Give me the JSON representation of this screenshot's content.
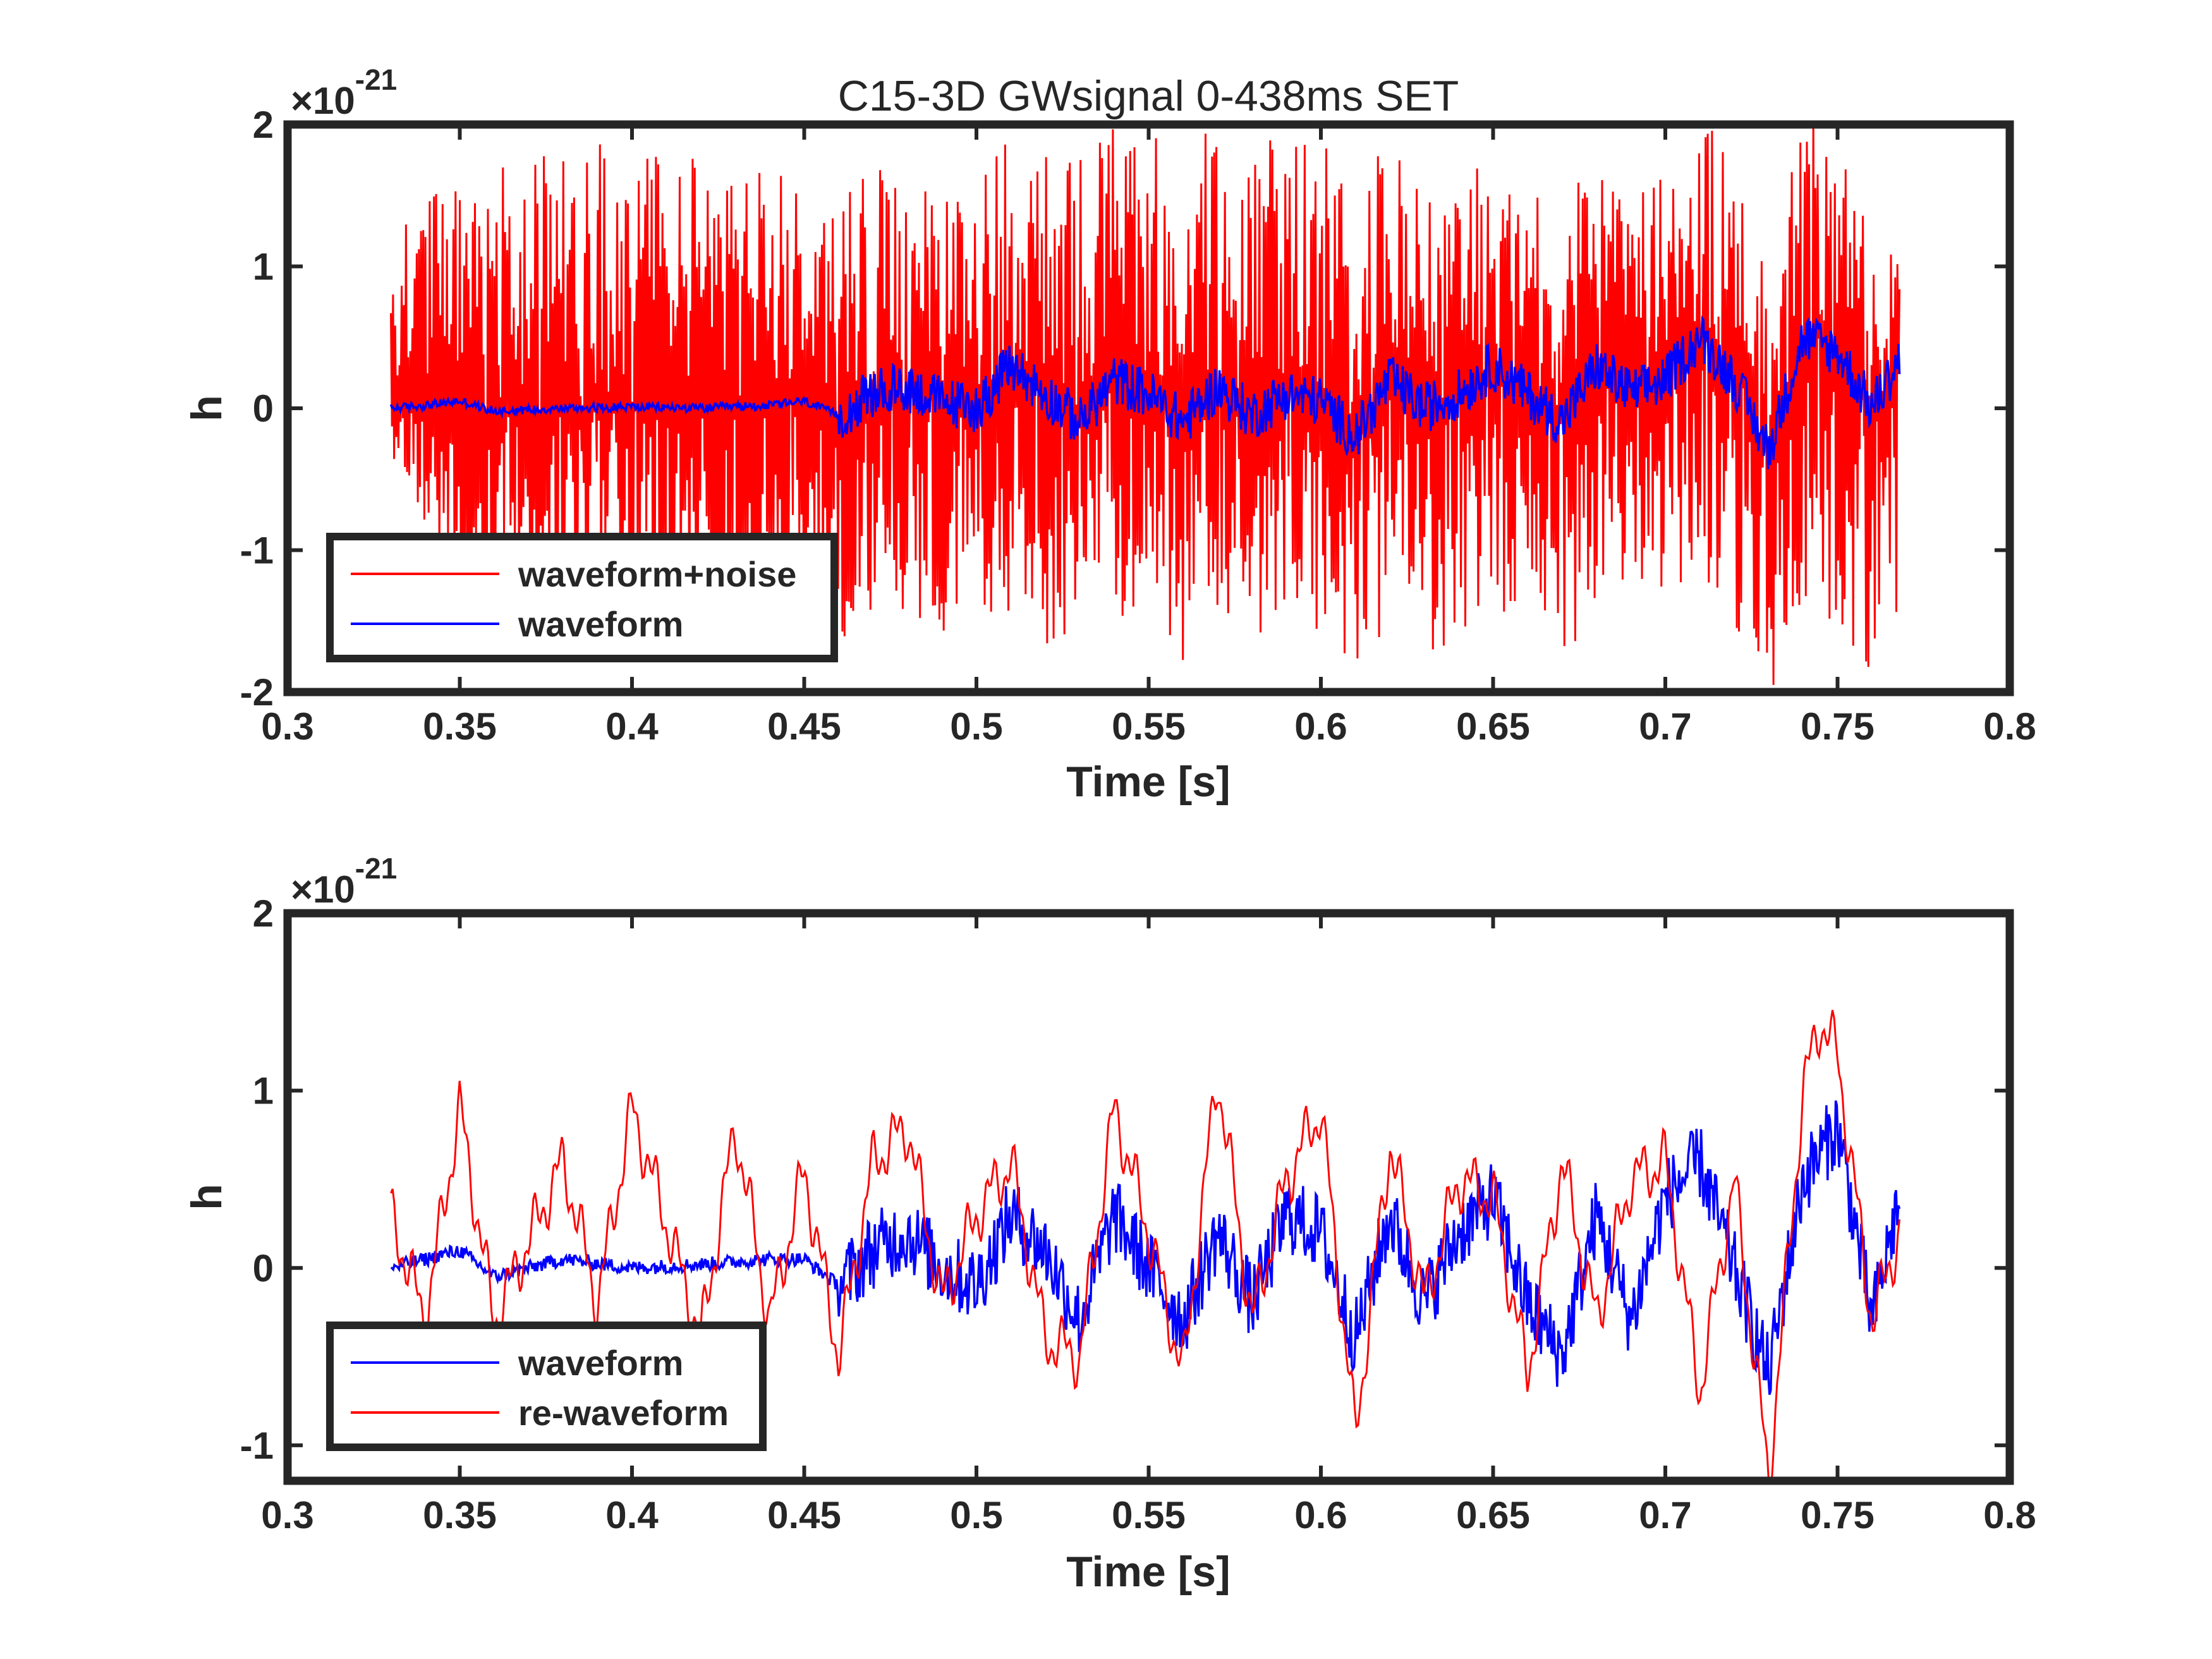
{
  "chart_data": [
    {
      "type": "line",
      "title": "C15-3D GWsignal 0-438ms SET",
      "xlabel": "Time [s]",
      "ylabel": "h",
      "exponent_base": "×10",
      "exponent_power": "-21",
      "xlim": [
        0.3,
        0.8
      ],
      "ylim": [
        -2,
        2
      ],
      "xticks": [
        0.3,
        0.35,
        0.4,
        0.45,
        0.5,
        0.55,
        0.6,
        0.65,
        0.7,
        0.75,
        0.8
      ],
      "xtick_labels": [
        "0.3",
        "0.35",
        "0.4",
        "0.45",
        "0.5",
        "0.55",
        "0.6",
        "0.65",
        "0.7",
        "0.75",
        "0.8"
      ],
      "yticks": [
        -2,
        -1,
        0,
        1,
        2
      ],
      "ytick_labels": [
        "-2",
        "-1",
        "0",
        "1",
        "2"
      ],
      "legend_position": "bottom-left",
      "time_range": [
        0.33,
        0.768
      ],
      "series": [
        {
          "name": "waveform+noise",
          "color": "#ff0000",
          "description": "dense broadband noise, amplitude about ±1.9e-21 over 0.33–0.768 s",
          "x": [
            0.33,
            0.35,
            0.4,
            0.45,
            0.5,
            0.55,
            0.6,
            0.65,
            0.7,
            0.75,
            0.768
          ],
          "envelope_max": [
            1.2,
            1.7,
            1.9,
            1.6,
            1.5,
            1.9,
            1.8,
            1.4,
            1.5,
            1.5,
            0.9
          ],
          "envelope_min": [
            -0.3,
            -1.4,
            -1.6,
            -1.7,
            -1.6,
            -1.65,
            -1.6,
            -1.7,
            -1.5,
            -1.8,
            -1.9
          ]
        },
        {
          "name": "waveform",
          "color": "#0000ff",
          "x": [
            0.33,
            0.34,
            0.35,
            0.36,
            0.38,
            0.4,
            0.42,
            0.44,
            0.45,
            0.46,
            0.47,
            0.48,
            0.49,
            0.5,
            0.51,
            0.52,
            0.53,
            0.54,
            0.55,
            0.56,
            0.57,
            0.58,
            0.59,
            0.6,
            0.61,
            0.62,
            0.63,
            0.64,
            0.65,
            0.66,
            0.67,
            0.68,
            0.69,
            0.7,
            0.71,
            0.72,
            0.73,
            0.74,
            0.75,
            0.76,
            0.768
          ],
          "y": [
            0.0,
            0.02,
            0.05,
            -0.02,
            0.0,
            0.01,
            0.0,
            0.02,
            0.05,
            -0.05,
            0.1,
            0.15,
            0.05,
            0.0,
            0.3,
            0.1,
            -0.1,
            0.2,
            0.1,
            -0.1,
            0.15,
            -0.05,
            0.1,
            0.05,
            -0.2,
            0.2,
            0.0,
            0.1,
            0.3,
            0.1,
            -0.1,
            0.3,
            0.1,
            0.2,
            0.5,
            0.2,
            -0.3,
            0.5,
            0.4,
            0.0,
            0.35
          ]
        }
      ]
    },
    {
      "type": "line",
      "xlabel": "Time [s]",
      "ylabel": "h",
      "exponent_base": "×10",
      "exponent_power": "-21",
      "xlim": [
        0.3,
        0.8
      ],
      "ylim": [
        -1.2,
        2
      ],
      "xticks": [
        0.3,
        0.35,
        0.4,
        0.45,
        0.5,
        0.55,
        0.6,
        0.65,
        0.7,
        0.75,
        0.8
      ],
      "xtick_labels": [
        "0.3",
        "0.35",
        "0.4",
        "0.45",
        "0.5",
        "0.55",
        "0.6",
        "0.65",
        "0.7",
        "0.75",
        "0.8"
      ],
      "yticks": [
        -1,
        0,
        1,
        2
      ],
      "ytick_labels": [
        "-1",
        "0",
        "1",
        "2"
      ],
      "legend_position": "bottom-left",
      "series": [
        {
          "name": "waveform",
          "color": "#0000ff",
          "x": [
            0.33,
            0.34,
            0.35,
            0.36,
            0.38,
            0.4,
            0.42,
            0.44,
            0.45,
            0.46,
            0.47,
            0.48,
            0.49,
            0.5,
            0.51,
            0.52,
            0.53,
            0.54,
            0.55,
            0.56,
            0.57,
            0.58,
            0.59,
            0.6,
            0.61,
            0.62,
            0.63,
            0.64,
            0.65,
            0.66,
            0.67,
            0.68,
            0.69,
            0.7,
            0.71,
            0.72,
            0.73,
            0.74,
            0.75,
            0.76,
            0.768
          ],
          "y": [
            0.0,
            0.05,
            0.1,
            -0.05,
            0.05,
            0.0,
            0.02,
            0.05,
            0.05,
            -0.1,
            0.1,
            0.2,
            0.0,
            -0.1,
            0.3,
            0.1,
            -0.3,
            0.3,
            0.0,
            -0.3,
            0.2,
            -0.2,
            0.3,
            0.2,
            -0.4,
            0.3,
            -0.2,
            0.2,
            0.4,
            -0.2,
            -0.5,
            0.3,
            -0.3,
            0.4,
            0.6,
            0.0,
            -0.6,
            0.5,
            0.8,
            -0.3,
            0.4
          ]
        },
        {
          "name": "re-waveform",
          "color": "#ff0000",
          "x": [
            0.33,
            0.34,
            0.35,
            0.36,
            0.38,
            0.39,
            0.4,
            0.42,
            0.43,
            0.44,
            0.45,
            0.46,
            0.47,
            0.48,
            0.49,
            0.5,
            0.51,
            0.52,
            0.53,
            0.54,
            0.55,
            0.56,
            0.57,
            0.58,
            0.59,
            0.6,
            0.61,
            0.62,
            0.63,
            0.64,
            0.65,
            0.66,
            0.67,
            0.68,
            0.69,
            0.7,
            0.71,
            0.72,
            0.73,
            0.74,
            0.745,
            0.75,
            0.76,
            0.768
          ],
          "y": [
            0.3,
            -0.3,
            0.9,
            -0.3,
            0.6,
            -0.2,
            0.9,
            -0.4,
            0.8,
            -0.3,
            0.55,
            -0.5,
            0.6,
            0.8,
            -0.2,
            0.3,
            0.6,
            -0.4,
            -0.5,
            0.9,
            0.2,
            -0.6,
            1.1,
            -0.3,
            0.5,
            0.9,
            -0.95,
            0.7,
            -0.2,
            0.5,
            0.4,
            -0.6,
            0.6,
            -0.3,
            0.5,
            0.6,
            -0.7,
            0.5,
            -1.2,
            1.0,
            1.4,
            1.2,
            -0.3,
            0.2
          ]
        }
      ]
    }
  ]
}
